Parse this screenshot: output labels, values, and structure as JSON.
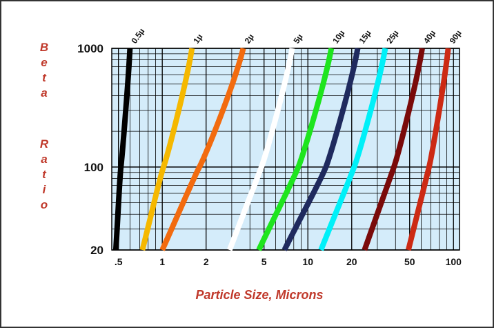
{
  "chart_data": {
    "type": "line",
    "title": "",
    "xlabel": "Particle Size, Microns",
    "ylabel": "Beta Ratio",
    "x_scale": "log",
    "y_scale": "log",
    "xlim": [
      0.45,
      110
    ],
    "ylim": [
      20,
      1000
    ],
    "x_ticks": [
      {
        "value": 0.5,
        "label": ".5"
      },
      {
        "value": 1,
        "label": "1"
      },
      {
        "value": 2,
        "label": "2"
      },
      {
        "value": 5,
        "label": "5"
      },
      {
        "value": 10,
        "label": "10"
      },
      {
        "value": 20,
        "label": "20"
      },
      {
        "value": 50,
        "label": "50"
      },
      {
        "value": 100,
        "label": "100"
      }
    ],
    "y_ticks": [
      {
        "value": 20,
        "label": "20"
      },
      {
        "value": 100,
        "label": "100"
      },
      {
        "value": 1000,
        "label": "1000"
      }
    ],
    "grid": true,
    "background": "#d4ecfa",
    "series": [
      {
        "name": "0.5µ",
        "color": "#000000",
        "points": [
          [
            0.48,
            20
          ],
          [
            0.52,
            100
          ],
          [
            0.6,
            1000
          ]
        ]
      },
      {
        "name": "1µ",
        "color": "#f5b800",
        "points": [
          [
            0.73,
            20
          ],
          [
            1.02,
            100
          ],
          [
            1.6,
            1000
          ]
        ]
      },
      {
        "name": "2µ",
        "color": "#f26b0f",
        "points": [
          [
            1.0,
            20
          ],
          [
            1.8,
            100
          ],
          [
            3.6,
            1000
          ]
        ]
      },
      {
        "name": "5µ",
        "color": "#ffffff",
        "points": [
          [
            2.9,
            20
          ],
          [
            4.8,
            100
          ],
          [
            7.8,
            1000
          ]
        ]
      },
      {
        "name": "10µ",
        "color": "#1ee51e",
        "points": [
          [
            4.6,
            20
          ],
          [
            8.6,
            100
          ],
          [
            14.5,
            1000
          ]
        ]
      },
      {
        "name": "15µ",
        "color": "#1f2a5e",
        "points": [
          [
            6.9,
            20
          ],
          [
            13.3,
            100
          ],
          [
            22,
            1000
          ]
        ]
      },
      {
        "name": "25µ",
        "color": "#00f0f8",
        "points": [
          [
            12.3,
            20
          ],
          [
            20.8,
            100
          ],
          [
            34,
            1000
          ]
        ]
      },
      {
        "name": "40µ",
        "color": "#7a0a0a",
        "points": [
          [
            24.5,
            20
          ],
          [
            39,
            100
          ],
          [
            61,
            1000
          ]
        ]
      },
      {
        "name": "90µ",
        "color": "#cc2a14",
        "points": [
          [
            49,
            20
          ],
          [
            68,
            100
          ],
          [
            92,
            1000
          ]
        ]
      }
    ]
  }
}
